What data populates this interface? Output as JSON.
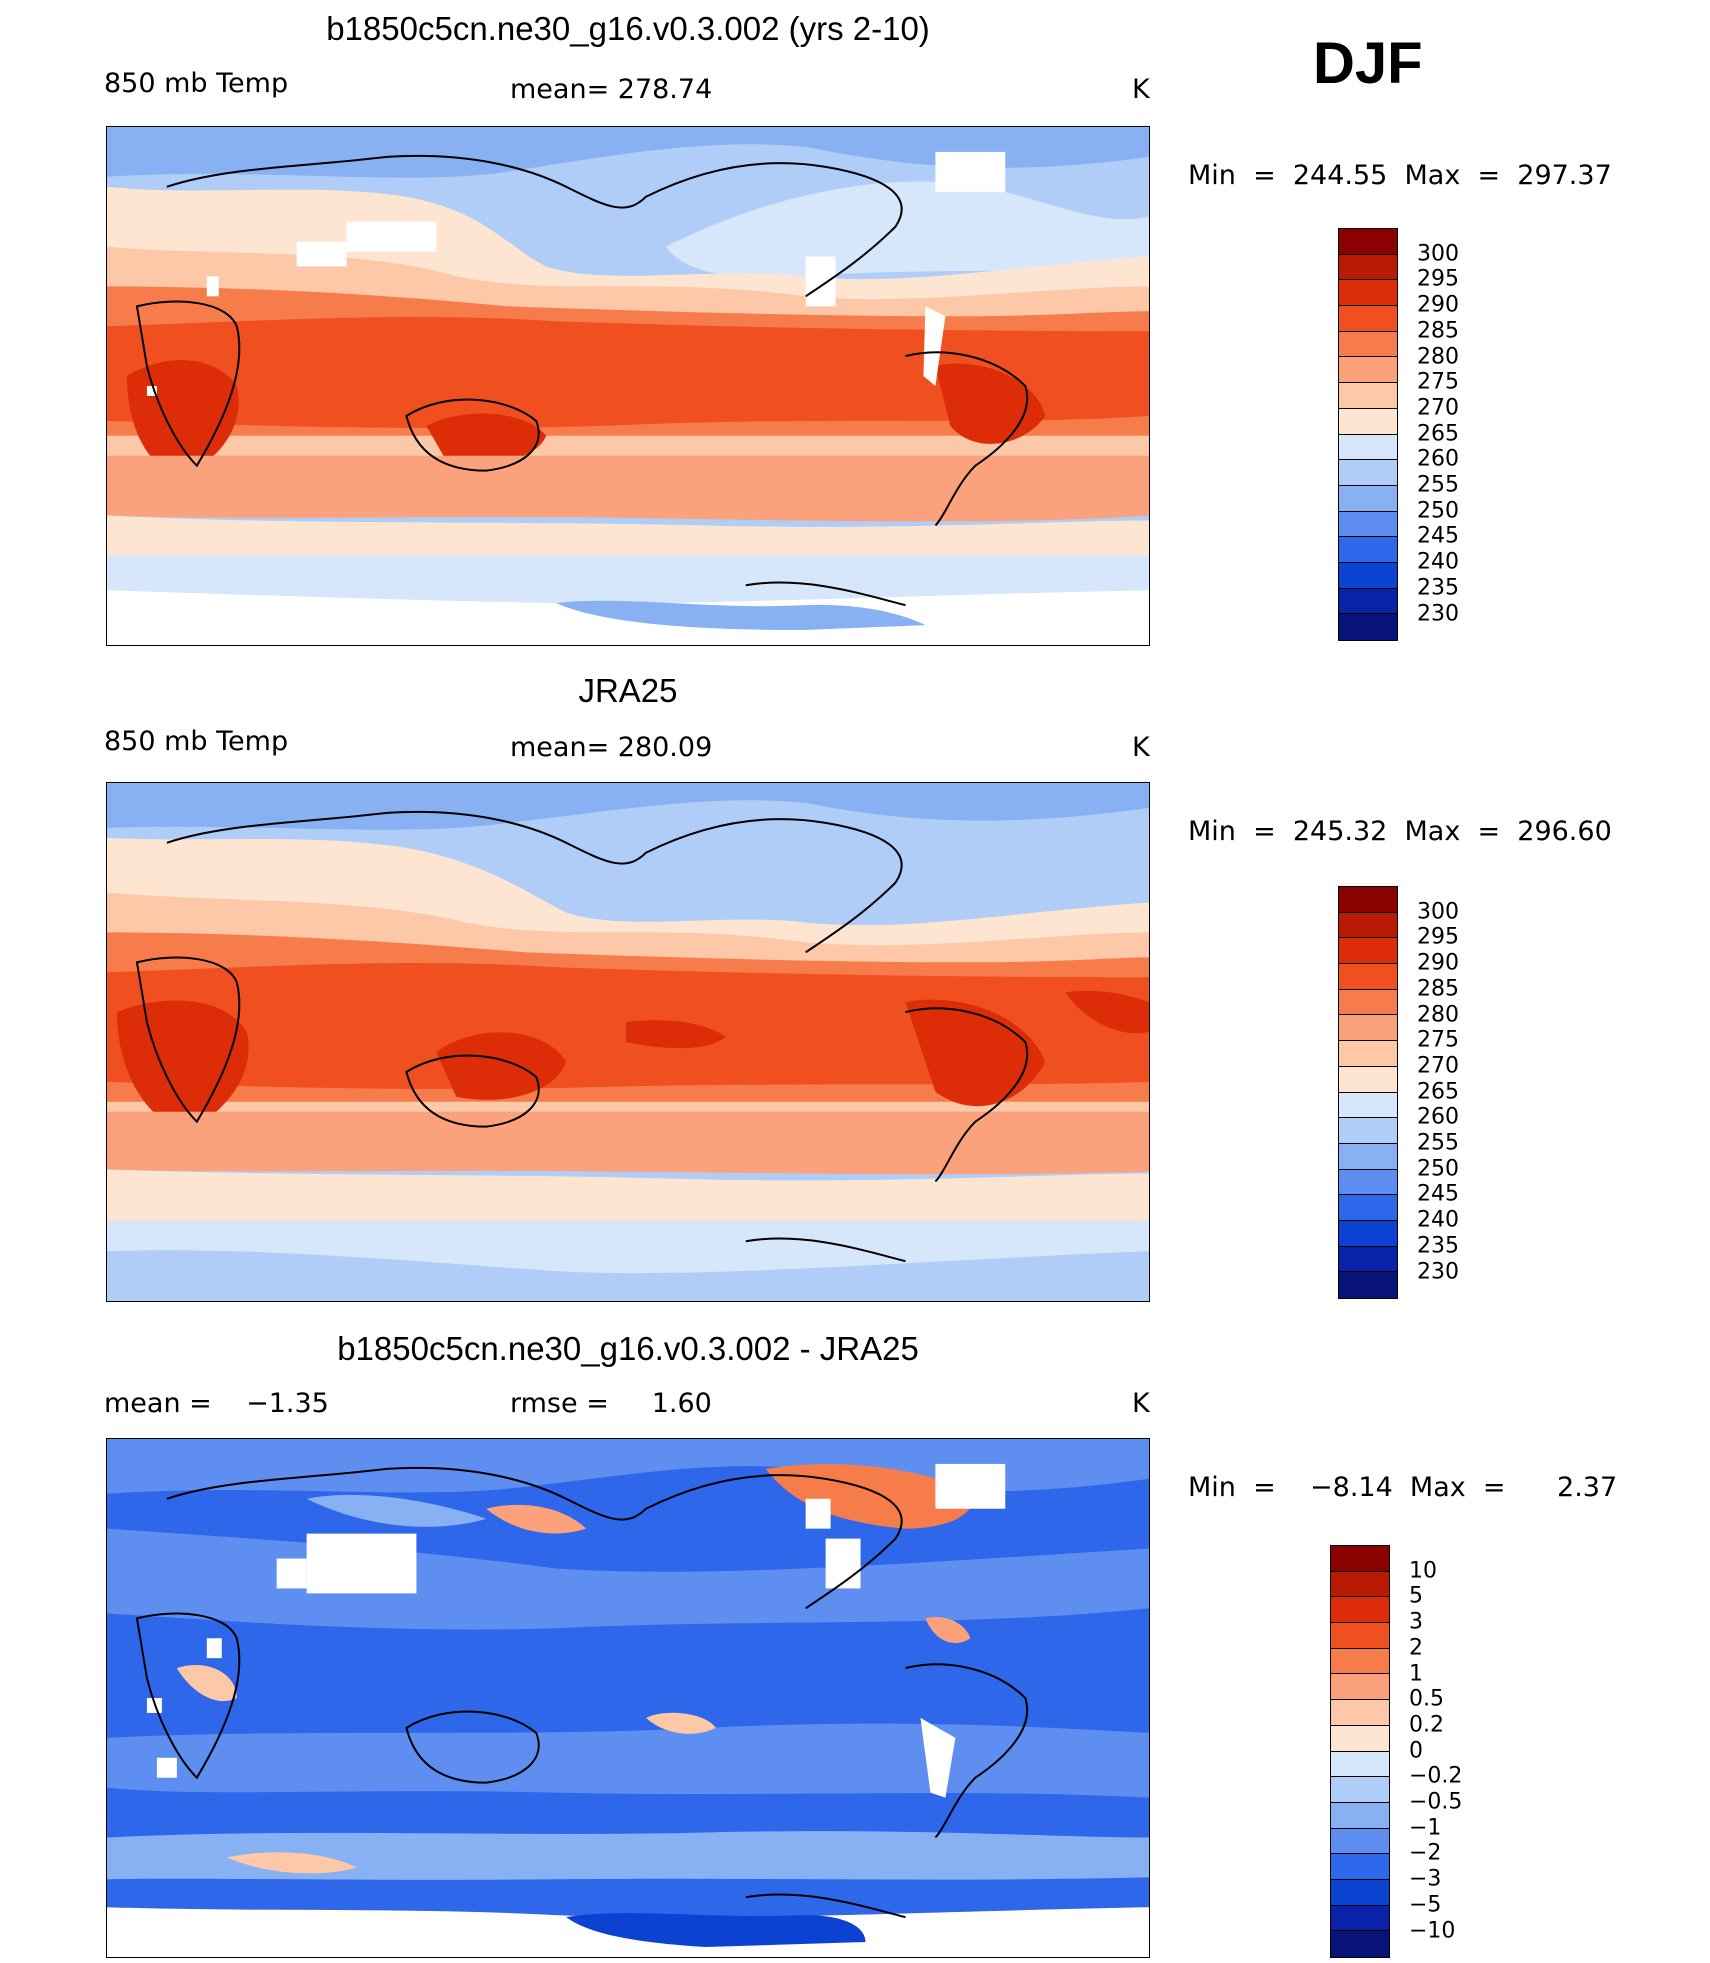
{
  "season": "DJF",
  "panels": [
    {
      "title": "b1850c5cn.ne30_g16.v0.3.002 (yrs 2-10)",
      "left_label": "850 mb Temp",
      "center_label": "mean= 278.74",
      "units": "K",
      "min_max": "Min  =  244.55  Max  =  297.37",
      "colorbar_labels": [
        "300",
        "295",
        "290",
        "285",
        "280",
        "275",
        "270",
        "265",
        "260",
        "255",
        "250",
        "245",
        "240",
        "235",
        "230"
      ],
      "colorbar_colors": [
        "#8b0000",
        "#b81a04",
        "#dc2c08",
        "#f0501f",
        "#f77c4c",
        "#fba27c",
        "#fcc8a8",
        "#fde5d2",
        "#d6e6fb",
        "#afcdf7",
        "#87b1f3",
        "#5d8ef0",
        "#2e67ea",
        "#0b42d2",
        "#0a22a8",
        "#081478"
      ]
    },
    {
      "title": "JRA25",
      "left_label": "850 mb Temp",
      "center_label": "mean= 280.09",
      "units": "K",
      "min_max": "Min  =  245.32  Max  =  296.60",
      "colorbar_labels": [
        "300",
        "295",
        "290",
        "285",
        "280",
        "275",
        "270",
        "265",
        "260",
        "255",
        "250",
        "245",
        "240",
        "235",
        "230"
      ],
      "colorbar_colors": [
        "#8b0000",
        "#b81a04",
        "#dc2c08",
        "#f0501f",
        "#f77c4c",
        "#fba27c",
        "#fcc8a8",
        "#fde5d2",
        "#d6e6fb",
        "#afcdf7",
        "#87b1f3",
        "#5d8ef0",
        "#2e67ea",
        "#0b42d2",
        "#0a22a8",
        "#081478"
      ]
    },
    {
      "title": "b1850c5cn.ne30_g16.v0.3.002 - JRA25",
      "left_label": "mean =    −1.35",
      "center_label": "rmse =     1.60",
      "units": "K",
      "min_max": "Min  =    −8.14  Max  =      2.37",
      "colorbar_labels": [
        "10",
        "5",
        "3",
        "2",
        "1",
        "0.5",
        "0.2",
        "0",
        "−0.2",
        "−0.5",
        "−1",
        "−2",
        "−3",
        "−5",
        "−10"
      ],
      "colorbar_colors": [
        "#8b0000",
        "#b81a04",
        "#dc2c08",
        "#f0501f",
        "#f77c4c",
        "#fba27c",
        "#fcc8a8",
        "#fde5d2",
        "#d6e6fb",
        "#afcdf7",
        "#87b1f3",
        "#5d8ef0",
        "#2e67ea",
        "#0b42d2",
        "#0a22a8",
        "#081478"
      ]
    }
  ]
}
